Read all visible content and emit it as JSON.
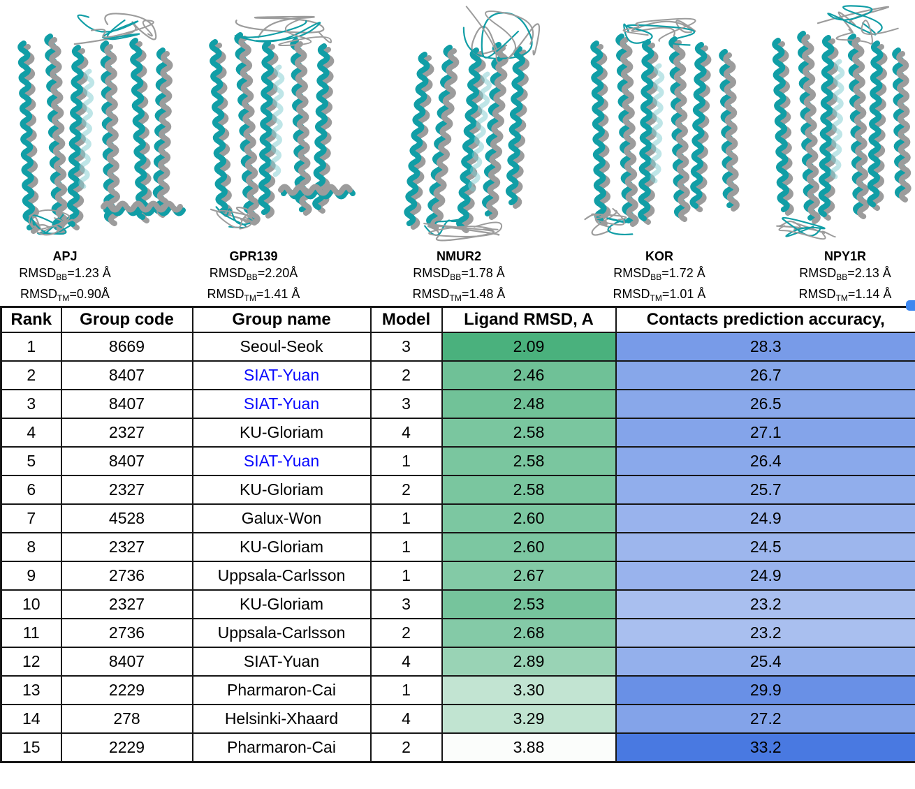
{
  "figures": {
    "model_color": "#119ea6",
    "model_color_faded": "#7ecbd0",
    "reference_color": "#9c9c9c",
    "proteins": [
      {
        "name": "APJ",
        "rmsd_label": "RMSD",
        "bb_sub": "BB",
        "bb_value": "=1.23 Å",
        "tm_sub": "TM",
        "tm_value": "=0.90Å"
      },
      {
        "name": "GPR139",
        "rmsd_label": "RMSD",
        "bb_sub": "BB",
        "bb_value": "=2.20Å",
        "tm_sub": "TM",
        "tm_value": "=1.41 Å"
      },
      {
        "name": "NMUR2",
        "rmsd_label": "RMSD",
        "bb_sub": "BB",
        "bb_value": "=1.78 Å",
        "tm_sub": "TM",
        "tm_value": "=1.48 Å"
      },
      {
        "name": "KOR",
        "rmsd_label": "RMSD",
        "bb_sub": "BB",
        "bb_value": "=1.72 Å",
        "tm_sub": "TM",
        "tm_value": "=1.01 Å"
      },
      {
        "name": "NPY1R",
        "rmsd_label": "RMSD",
        "bb_sub": "BB",
        "bb_value": "=2.13 Å",
        "tm_sub": "TM",
        "tm_value": "=1.14 Å"
      }
    ]
  },
  "table": {
    "columns": [
      "Rank",
      "Group code",
      "Group name",
      "Model",
      "Ligand RMSD, A",
      "Contacts prediction accuracy,"
    ],
    "highlight_text_color": "#0909ff",
    "normal_text_color": "#000000",
    "ligand_rmsd_scale": {
      "best": 2.09,
      "worst": 3.88,
      "best_color": "#4ab17d",
      "worst_color": "#fbfdfb"
    },
    "contacts_scale": {
      "min": 23.2,
      "max": 33.2,
      "min_color": "#a9bfef",
      "max_color": "#4979e1"
    },
    "rows": [
      {
        "rank": "1",
        "group_code": "8669",
        "group_name": "Seoul-Seok",
        "model": "3",
        "ligand_rmsd": "2.09",
        "contacts": "28.3",
        "highlighted": false
      },
      {
        "rank": "2",
        "group_code": "8407",
        "group_name": "SIAT-Yuan",
        "model": "2",
        "ligand_rmsd": "2.46",
        "contacts": "26.7",
        "highlighted": true
      },
      {
        "rank": "3",
        "group_code": "8407",
        "group_name": "SIAT-Yuan",
        "model": "3",
        "ligand_rmsd": "2.48",
        "contacts": "26.5",
        "highlighted": true
      },
      {
        "rank": "4",
        "group_code": "2327",
        "group_name": "KU-Gloriam",
        "model": "4",
        "ligand_rmsd": "2.58",
        "contacts": "27.1",
        "highlighted": false
      },
      {
        "rank": "5",
        "group_code": "8407",
        "group_name": "SIAT-Yuan",
        "model": "1",
        "ligand_rmsd": "2.58",
        "contacts": "26.4",
        "highlighted": true
      },
      {
        "rank": "6",
        "group_code": "2327",
        "group_name": "KU-Gloriam",
        "model": "2",
        "ligand_rmsd": "2.58",
        "contacts": "25.7",
        "highlighted": false
      },
      {
        "rank": "7",
        "group_code": "4528",
        "group_name": "Galux-Won",
        "model": "1",
        "ligand_rmsd": "2.60",
        "contacts": "24.9",
        "highlighted": false
      },
      {
        "rank": "8",
        "group_code": "2327",
        "group_name": "KU-Gloriam",
        "model": "1",
        "ligand_rmsd": "2.60",
        "contacts": "24.5",
        "highlighted": false
      },
      {
        "rank": "9",
        "group_code": "2736",
        "group_name": "Uppsala-Carlsson",
        "model": "1",
        "ligand_rmsd": "2.67",
        "contacts": "24.9",
        "highlighted": false
      },
      {
        "rank": "10",
        "group_code": "2327",
        "group_name": "KU-Gloriam",
        "model": "3",
        "ligand_rmsd": "2.53",
        "contacts": "23.2",
        "highlighted": false
      },
      {
        "rank": "11",
        "group_code": "2736",
        "group_name": "Uppsala-Carlsson",
        "model": "2",
        "ligand_rmsd": "2.68",
        "contacts": "23.2",
        "highlighted": false
      },
      {
        "rank": "12",
        "group_code": "8407",
        "group_name": "SIAT-Yuan",
        "model": "4",
        "ligand_rmsd": "2.89",
        "contacts": "25.4",
        "highlighted": false
      },
      {
        "rank": "13",
        "group_code": "2229",
        "group_name": "Pharmaron-Cai",
        "model": "1",
        "ligand_rmsd": "3.30",
        "contacts": "29.9",
        "highlighted": false
      },
      {
        "rank": "14",
        "group_code": "278",
        "group_name": "Helsinki-Xhaard",
        "model": "4",
        "ligand_rmsd": "3.29",
        "contacts": "27.2",
        "highlighted": false
      },
      {
        "rank": "15",
        "group_code": "2229",
        "group_name": "Pharmaron-Cai",
        "model": "2",
        "ligand_rmsd": "3.88",
        "contacts": "33.2",
        "highlighted": false
      }
    ]
  }
}
